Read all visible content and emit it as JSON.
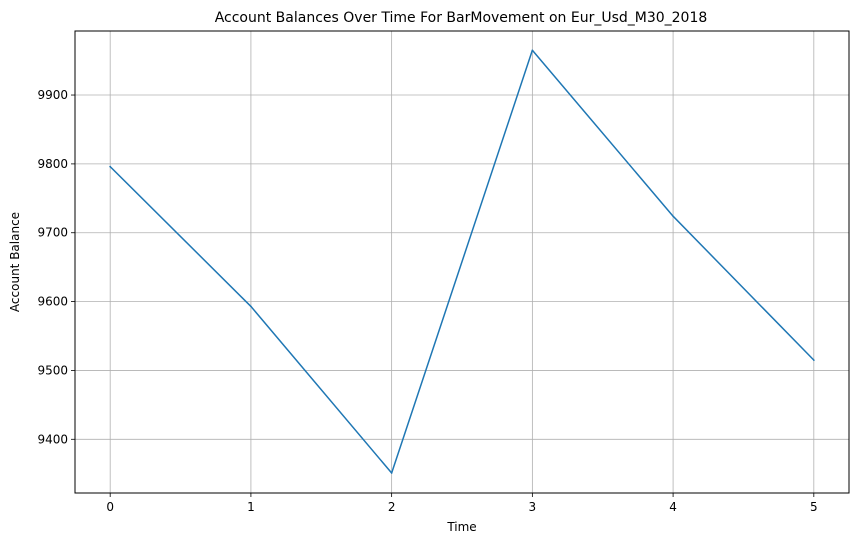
{
  "chart_data": {
    "type": "line",
    "title": "Account Balances Over Time For BarMovement on Eur_Usd_M30_2018",
    "xlabel": "Time",
    "ylabel": "Account Balance",
    "x": [
      0,
      1,
      2,
      3,
      4,
      5
    ],
    "xticks": [
      "0",
      "1",
      "2",
      "3",
      "4",
      "5"
    ],
    "yticks": [
      "9400",
      "9500",
      "9600",
      "9700",
      "9800",
      "9900"
    ],
    "xlim": [
      -0.25,
      5.25
    ],
    "ylim": [
      9322,
      9993
    ],
    "grid": true,
    "legend": "none",
    "series": [
      {
        "color": "#1f77b4",
        "values": [
          9796,
          9593,
          9351,
          9965,
          9724,
          9515
        ]
      }
    ]
  }
}
